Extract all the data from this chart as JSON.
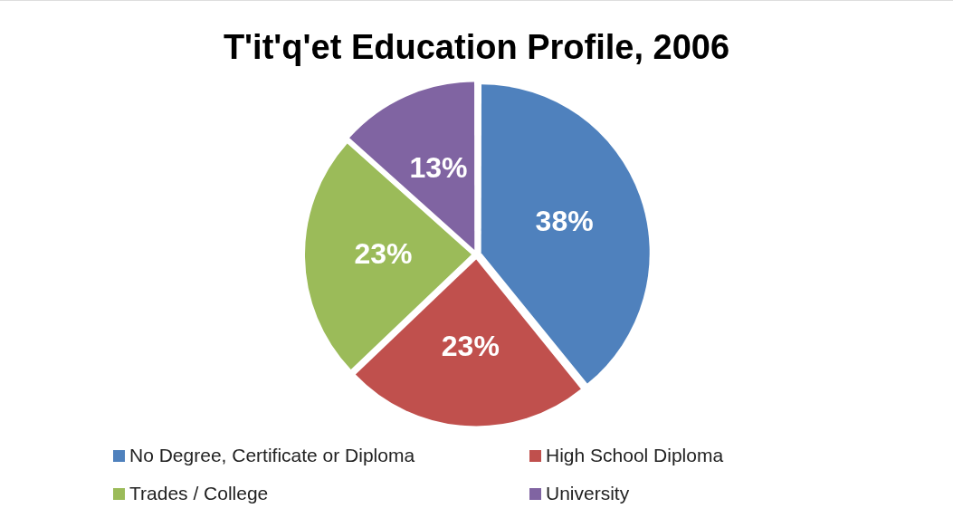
{
  "chart_data": {
    "type": "pie",
    "title": "T'it'q'et Education Profile, 2006",
    "categories": [
      "No Degree, Certificate or Diploma",
      "High School Diploma",
      "Trades / College",
      "University"
    ],
    "values": [
      38,
      23,
      23,
      13
    ],
    "colors": [
      "#4f81bd",
      "#c0504d",
      "#9bbb59",
      "#8064a2"
    ],
    "value_labels": [
      "38%",
      "23%",
      "23%",
      "13%"
    ],
    "legend": "bottom"
  }
}
